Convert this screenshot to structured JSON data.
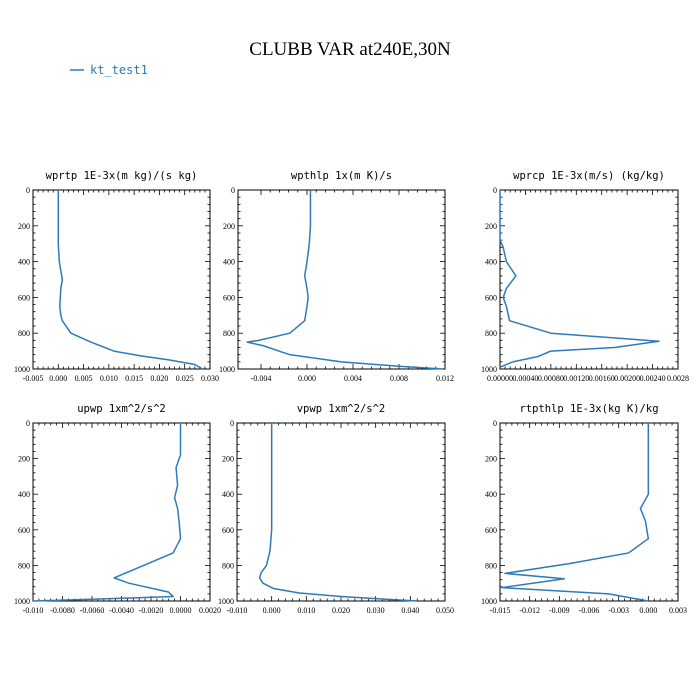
{
  "title": "CLUBB VAR at240E,30N",
  "colors": {
    "series": "#2e7ab8",
    "axis": "#000000",
    "background": "#ffffff"
  },
  "legend": {
    "label": "kt_test1",
    "placement": "top-left"
  },
  "chart_data": [
    {
      "type": "line",
      "title": "wprtp  1E-3x(m kg)/(s kg)",
      "xlim": [
        -0.005,
        0.03
      ],
      "ylim": [
        1000,
        0
      ],
      "x_ticks": [
        -0.005,
        0.0,
        0.005,
        0.01,
        0.015,
        0.02,
        0.025,
        0.03
      ],
      "x_tick_labels": [
        "-0.005",
        "0.000",
        "0.005",
        "0.010",
        "0.015",
        "0.020",
        "0.025",
        "0.030"
      ],
      "y_ticks": [
        0,
        200,
        400,
        600,
        800,
        1000
      ],
      "y_tick_labels": [
        "0",
        "200",
        "400",
        "600",
        "800",
        "1000"
      ],
      "series": [
        {
          "name": "kt_test1",
          "x": [
            0.0,
            0.0,
            0.0,
            0.0,
            0.0002,
            0.0005,
            0.0008,
            0.0005,
            0.0003,
            0.0005,
            0.0008,
            0.0025,
            0.0065,
            0.011,
            0.016,
            0.022,
            0.027,
            0.0285
          ],
          "y": [
            0,
            100,
            200,
            300,
            400,
            450,
            500,
            550,
            650,
            700,
            730,
            800,
            850,
            900,
            925,
            950,
            975,
            1000
          ]
        }
      ]
    },
    {
      "type": "line",
      "title": "wpthlp  1x(m K)/s",
      "xlim": [
        -0.006,
        0.012
      ],
      "ylim": [
        1000,
        0
      ],
      "x_ticks": [
        -0.004,
        0.0,
        0.004,
        0.008,
        0.012
      ],
      "x_tick_labels": [
        "-0.004",
        "0.000",
        "0.004",
        "0.008",
        "0.012"
      ],
      "y_ticks": [
        0,
        200,
        400,
        600,
        800,
        1000
      ],
      "y_tick_labels": [
        "0",
        "200",
        "400",
        "600",
        "800",
        "1000"
      ],
      "series": [
        {
          "name": "kt_test1",
          "x": [
            0.0003,
            0.0003,
            0.0003,
            0.0002,
            0.0,
            -0.0002,
            0.0,
            0.0001,
            0.0,
            -0.0002,
            -0.0015,
            -0.0042,
            -0.0052,
            -0.0038,
            -0.0015,
            0.003,
            0.008,
            0.0118
          ],
          "y": [
            0,
            100,
            200,
            300,
            400,
            480,
            550,
            600,
            650,
            730,
            800,
            840,
            850,
            870,
            920,
            960,
            985,
            1000
          ]
        }
      ]
    },
    {
      "type": "line",
      "title": "wprcp  1E-3x(m/s) (kg/kg)",
      "xlim": [
        0.0,
        0.0028
      ],
      "ylim": [
        1000,
        0
      ],
      "x_ticks": [
        0.0,
        0.0004,
        0.0008,
        0.0012,
        0.0016,
        0.002,
        0.0024,
        0.0028
      ],
      "x_tick_labels": [
        "0.00000",
        "0.00040",
        "0.00080",
        "0.00120",
        "0.00160",
        "0.00200",
        "0.00240",
        "0.0028"
      ],
      "y_ticks": [
        0,
        200,
        400,
        600,
        800,
        1000
      ],
      "y_tick_labels": [
        "0",
        "200",
        "400",
        "600",
        "800",
        "1000"
      ],
      "series": [
        {
          "name": "kt_test1",
          "x": [
            0.0,
            0.0,
            0.0,
            5e-05,
            0.0001,
            0.00025,
            0.0001,
            5e-05,
            0.0001,
            0.00015,
            0.0008,
            0.0025,
            0.0018,
            0.0008,
            0.0006,
            0.0002,
            0.0
          ],
          "y": [
            0,
            100,
            280,
            320,
            400,
            480,
            550,
            600,
            650,
            730,
            800,
            845,
            880,
            900,
            930,
            960,
            990
          ]
        }
      ]
    },
    {
      "type": "line",
      "title": "upwp  1xm^2/s^2",
      "xlim": [
        -0.01,
        0.002
      ],
      "ylim": [
        1000,
        0
      ],
      "x_ticks": [
        -0.01,
        -0.008,
        -0.006,
        -0.004,
        -0.002,
        0.0,
        0.002
      ],
      "x_tick_labels": [
        "-0.010",
        "-0.0080",
        "-0.0060",
        "-0.0040",
        "-0.0020",
        "0.0000",
        "0.0020"
      ],
      "y_ticks": [
        0,
        200,
        400,
        600,
        800,
        1000
      ],
      "y_tick_labels": [
        "0",
        "200",
        "400",
        "600",
        "800",
        "1000"
      ],
      "series": [
        {
          "name": "kt_test1",
          "x": [
            0.0,
            0.0,
            0.0,
            -0.0003,
            -0.0002,
            -0.0004,
            -0.0002,
            -0.0001,
            0.0,
            -0.0005,
            -0.0025,
            -0.0045,
            -0.0035,
            -0.0008,
            -0.0005,
            -0.006,
            -0.01
          ],
          "y": [
            0,
            100,
            180,
            250,
            350,
            420,
            480,
            550,
            650,
            730,
            800,
            870,
            900,
            950,
            975,
            990,
            1000
          ]
        }
      ]
    },
    {
      "type": "line",
      "title": "vpwp  1xm^2/s^2",
      "xlim": [
        -0.01,
        0.05
      ],
      "ylim": [
        1000,
        0
      ],
      "x_ticks": [
        -0.01,
        0.0,
        0.01,
        0.02,
        0.03,
        0.04,
        0.05
      ],
      "x_tick_labels": [
        "-0.010",
        "0.000",
        "0.010",
        "0.020",
        "0.030",
        "0.040",
        "0.050"
      ],
      "y_ticks": [
        0,
        200,
        400,
        600,
        800,
        1000
      ],
      "y_tick_labels": [
        "0",
        "200",
        "400",
        "600",
        "800",
        "1000"
      ],
      "series": [
        {
          "name": "kt_test1",
          "x": [
            0.0,
            0.0,
            0.0,
            0.0,
            -0.0005,
            -0.0015,
            -0.003,
            -0.0035,
            -0.0025,
            0.0005,
            0.008,
            0.02,
            0.033,
            0.042
          ],
          "y": [
            0,
            200,
            400,
            600,
            720,
            800,
            840,
            870,
            900,
            930,
            955,
            975,
            990,
            1000
          ]
        }
      ]
    },
    {
      "type": "line",
      "title": "rtpthlp  1E-3x(kg K)/kg",
      "xlim": [
        -0.015,
        0.003
      ],
      "ylim": [
        1000,
        0
      ],
      "x_ticks": [
        -0.015,
        -0.012,
        -0.009,
        -0.006,
        -0.003,
        0.0,
        0.003
      ],
      "x_tick_labels": [
        "-0.015",
        "-0.012",
        "-0.009",
        "-0.006",
        "-0.003",
        "0.000",
        "0.003"
      ],
      "y_ticks": [
        0,
        200,
        400,
        600,
        800,
        1000
      ],
      "y_tick_labels": [
        "0",
        "200",
        "400",
        "600",
        "800",
        "1000"
      ],
      "series": [
        {
          "name": "kt_test1",
          "x": [
            0.0,
            0.0,
            0.0,
            -0.0005,
            -0.0008,
            -0.0003,
            0.0,
            -0.002,
            -0.008,
            -0.0145,
            -0.0085,
            -0.0148,
            -0.004,
            -0.0015,
            0.0
          ],
          "y": [
            0,
            200,
            400,
            450,
            480,
            550,
            650,
            730,
            790,
            845,
            875,
            925,
            960,
            985,
            1000
          ]
        }
      ]
    }
  ]
}
